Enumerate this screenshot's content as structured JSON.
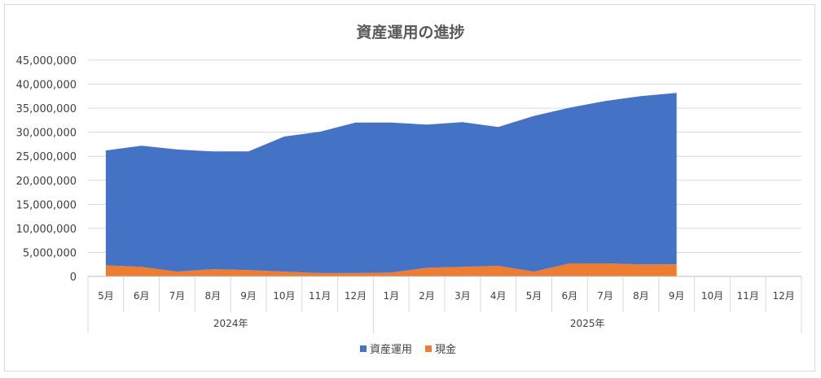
{
  "chart_data": {
    "type": "area",
    "stacked": true,
    "title": "資産運用の進捗",
    "xlabel": "",
    "ylabel": "",
    "ylim": [
      0,
      45000000
    ],
    "yticks": [
      0,
      5000000,
      10000000,
      15000000,
      20000000,
      25000000,
      30000000,
      35000000,
      40000000,
      45000000
    ],
    "ytick_labels": [
      "0",
      "5,000,000",
      "10,000,000",
      "15,000,000",
      "20,000,000",
      "25,000,000",
      "30,000,000",
      "35,000,000",
      "40,000,000",
      "45,000,000"
    ],
    "grid": true,
    "legend_position": "bottom",
    "categories": [
      "5月",
      "6月",
      "7月",
      "8月",
      "9月",
      "10月",
      "11月",
      "12月",
      "1月",
      "2月",
      "3月",
      "4月",
      "5月",
      "6月",
      "7月",
      "8月",
      "9月",
      "10月",
      "11月",
      "12月"
    ],
    "groups": [
      {
        "label": "2024年",
        "count": 8
      },
      {
        "label": "2025年",
        "count": 12
      }
    ],
    "series": [
      {
        "name": "現金",
        "color": "#ed7d31",
        "values": [
          2300000,
          2000000,
          1000000,
          1500000,
          1300000,
          1000000,
          700000,
          700000,
          800000,
          1800000,
          2000000,
          2200000,
          1000000,
          2700000,
          2700000,
          2500000,
          2500000,
          null,
          null,
          null
        ]
      },
      {
        "name": "資産運用",
        "color": "#4472c4",
        "values": [
          23900000,
          25200000,
          25400000,
          24500000,
          24700000,
          28100000,
          29400000,
          31300000,
          31200000,
          29800000,
          30100000,
          28900000,
          32400000,
          32400000,
          33800000,
          35000000,
          35700000,
          null,
          null,
          null
        ]
      }
    ]
  }
}
